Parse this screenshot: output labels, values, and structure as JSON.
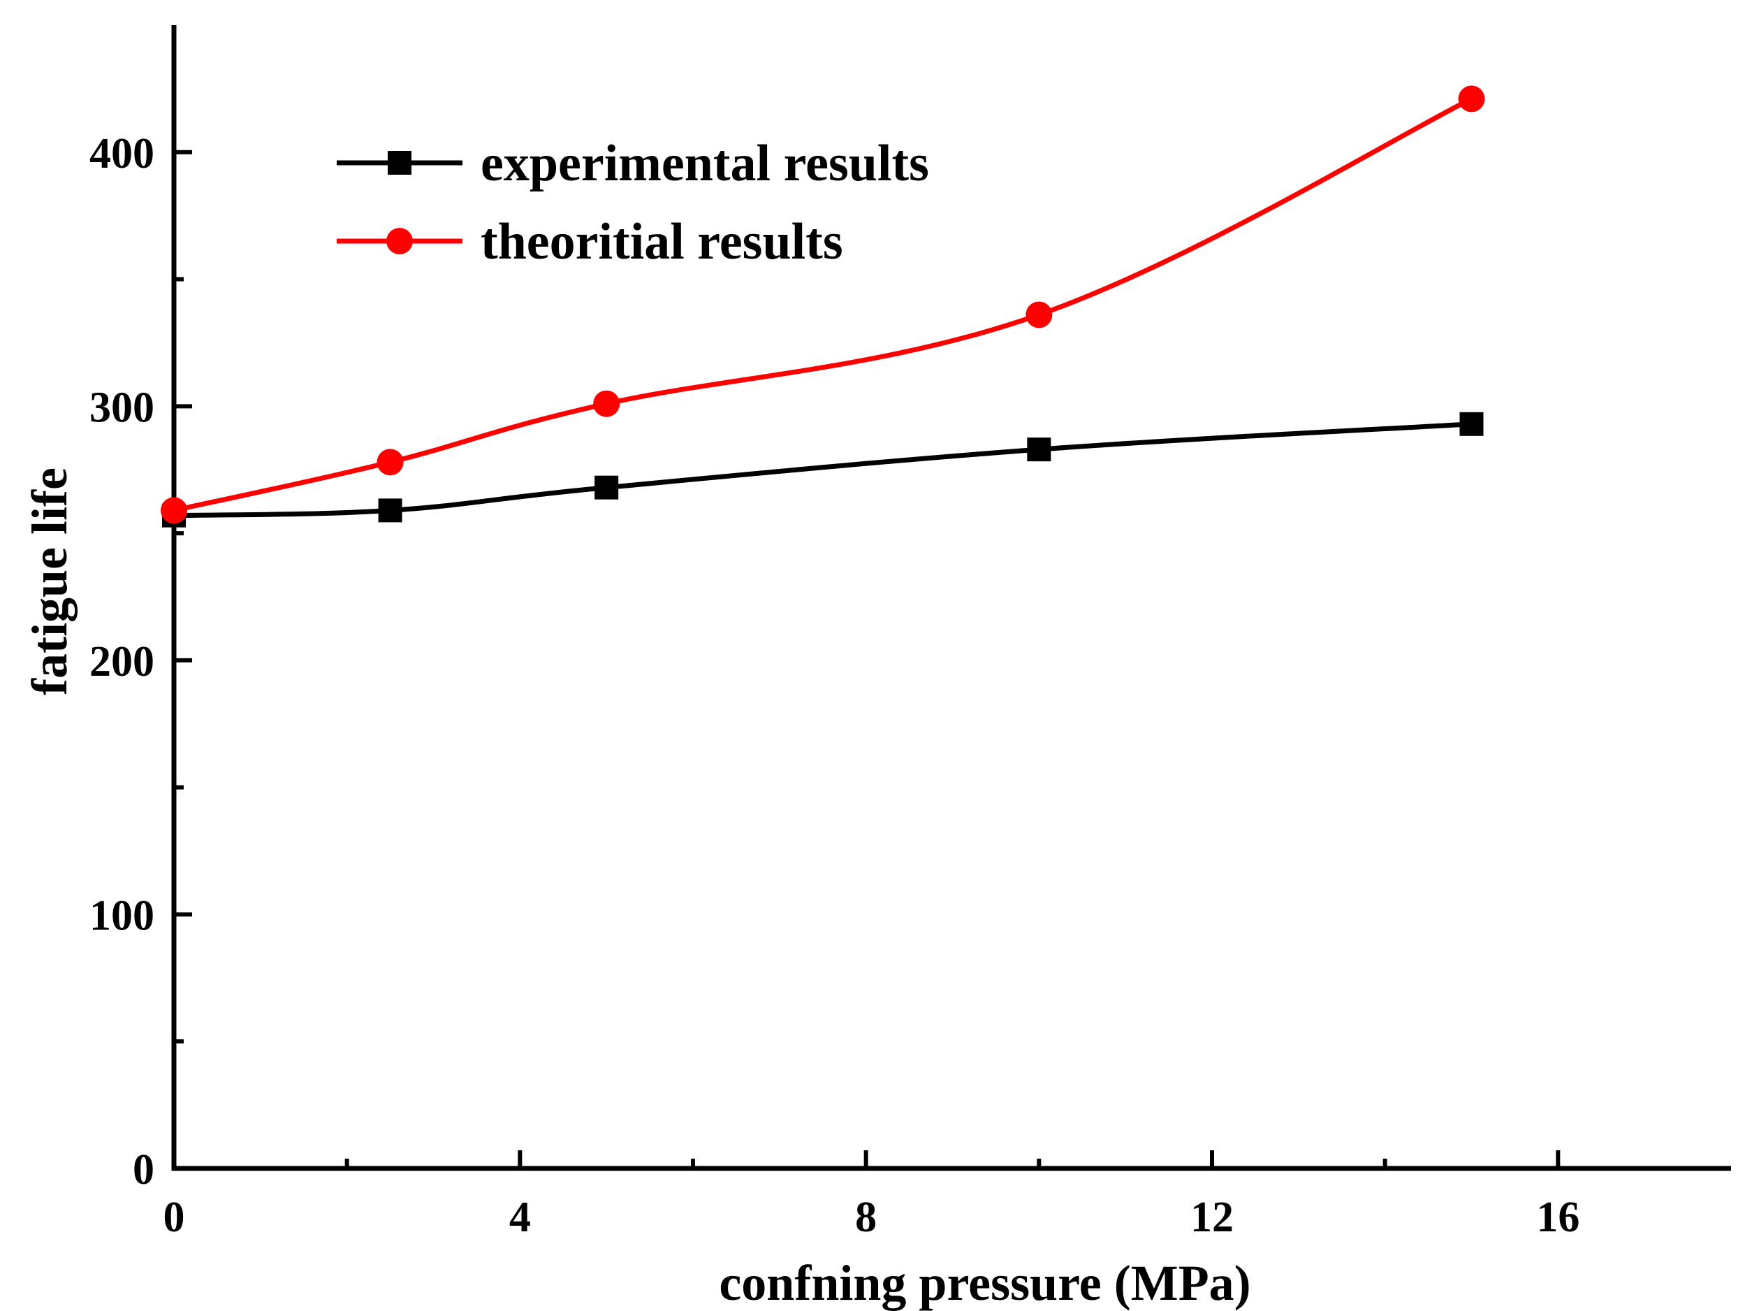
{
  "chart_data": {
    "type": "line",
    "title": "",
    "xlabel": "confning pressure (MPa)",
    "ylabel": "fatigue life",
    "xlim": [
      0,
      18
    ],
    "ylim": [
      0,
      450
    ],
    "x_ticks": [
      0,
      4,
      8,
      12,
      16
    ],
    "x_tick_labels": [
      "0",
      "4",
      "8",
      "12",
      "16"
    ],
    "x_minor_ticks": [
      2,
      6,
      10,
      14
    ],
    "y_ticks": [
      0,
      100,
      200,
      300,
      400
    ],
    "y_tick_labels": [
      "0",
      "100",
      "200",
      "300",
      "400"
    ],
    "y_minor_ticks": [
      50,
      150,
      250,
      350
    ],
    "grid": false,
    "legend_position": "top-left",
    "series": [
      {
        "name": "experimental results",
        "color": "#000000",
        "marker": "square",
        "x": [
          0,
          2.5,
          5,
          10,
          15
        ],
        "values": [
          257,
          259,
          268,
          283,
          293
        ]
      },
      {
        "name": "theoritial results",
        "color": "#ff0000",
        "marker": "circle",
        "x": [
          0,
          2.5,
          5,
          10,
          15
        ],
        "values": [
          259,
          278,
          301,
          336,
          421
        ]
      }
    ]
  }
}
